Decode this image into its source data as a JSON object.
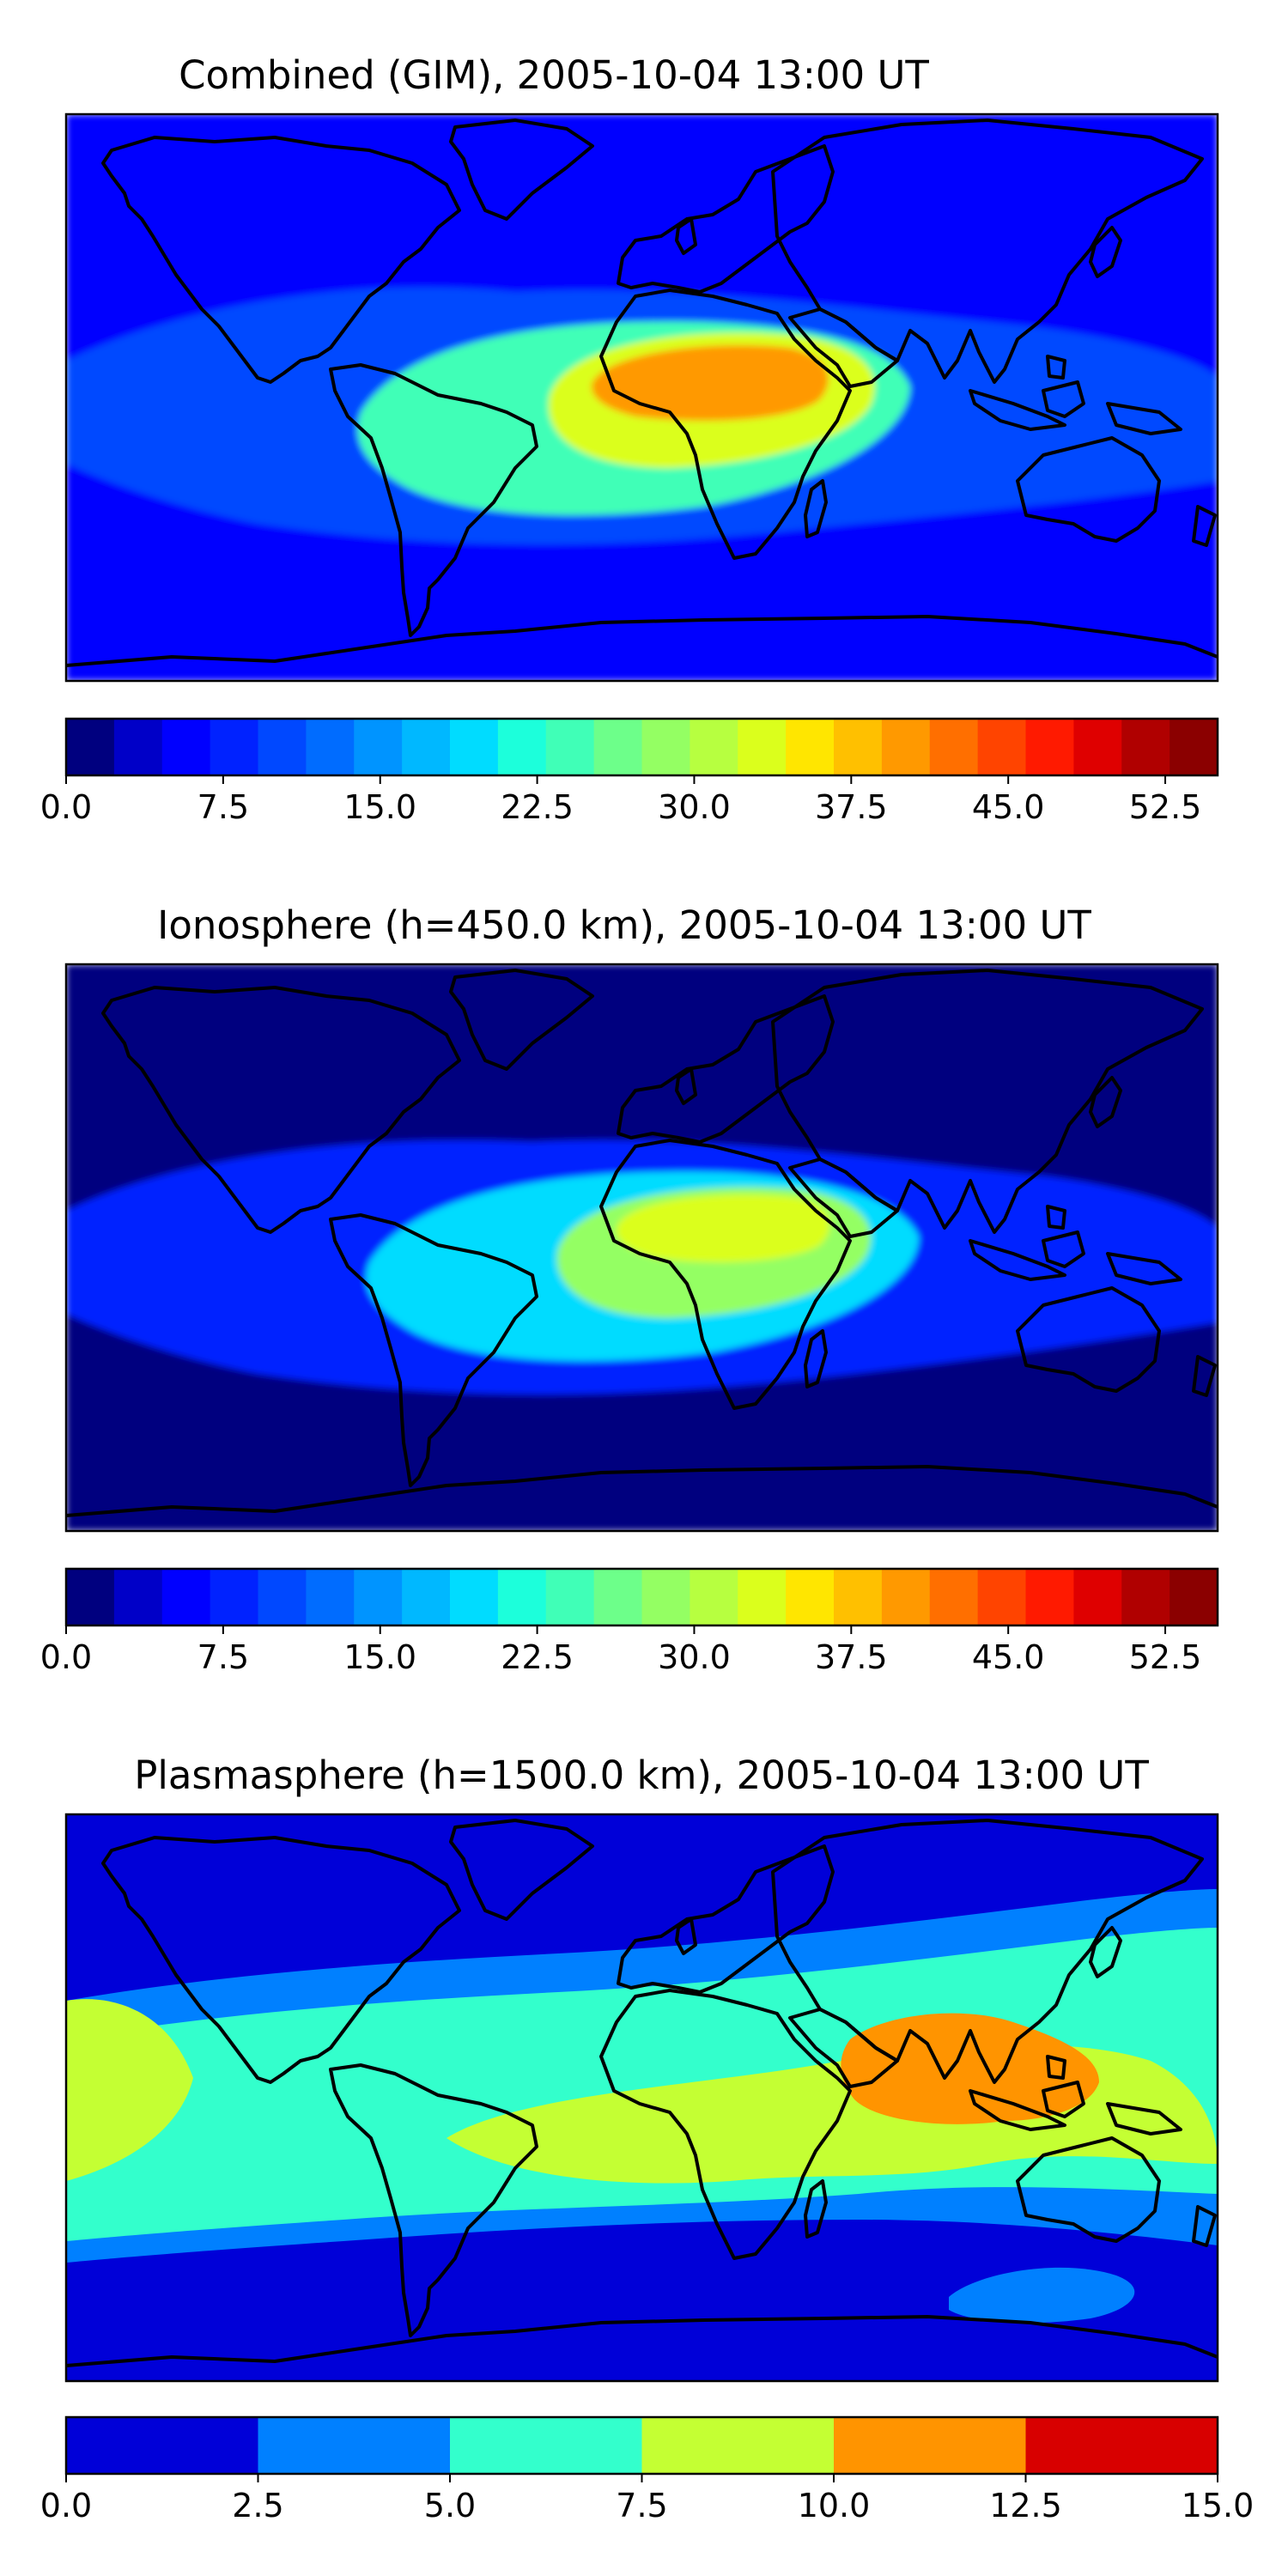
{
  "chart_data": [
    {
      "type": "heatmap",
      "title": "Combined (GIM), 2005-10-04 13:00 UT",
      "projection": "global-plate-carree",
      "colorbar": {
        "min": 0.0,
        "max": 55.0,
        "step": 2.5,
        "tick_values": [
          0.0,
          7.5,
          15.0,
          22.5,
          30.0,
          37.5,
          45.0,
          52.5
        ],
        "tick_labels": [
          "0.0",
          "7.5",
          "15.0",
          "22.5",
          "30.0",
          "37.5",
          "45.0",
          "52.5"
        ],
        "colors": [
          "#00007f",
          "#0000c8",
          "#0000ff",
          "#0022ff",
          "#0048ff",
          "#006cff",
          "#0094ff",
          "#00b8ff",
          "#00dcff",
          "#1cffdb",
          "#40ffb7",
          "#6dff8a",
          "#94ff63",
          "#b7ff40",
          "#dbff1c",
          "#ffe600",
          "#ffc000",
          "#ff9900",
          "#ff6f00",
          "#ff4400",
          "#ff1a00",
          "#df0000",
          "#b00000",
          "#8b0000"
        ]
      },
      "features": [
        {
          "name": "background",
          "level": 5.0
        },
        {
          "name": "equatorial-band",
          "level": 12.0
        },
        {
          "name": "atlantic-africa-max",
          "level": 27.0
        },
        {
          "name": "africa-core",
          "level": 36.0
        },
        {
          "name": "sahel-peak",
          "level": 43.0
        }
      ]
    },
    {
      "type": "heatmap",
      "title": "Ionosphere  (h=450.0 km), 2005-10-04 13:00 UT",
      "projection": "global-plate-carree",
      "colorbar": {
        "min": 0.0,
        "max": 55.0,
        "step": 2.5,
        "tick_values": [
          0.0,
          7.5,
          15.0,
          22.5,
          30.0,
          37.5,
          45.0,
          52.5
        ],
        "tick_labels": [
          "0.0",
          "7.5",
          "15.0",
          "22.5",
          "30.0",
          "37.5",
          "45.0",
          "52.5"
        ],
        "colors": [
          "#00007f",
          "#0000c8",
          "#0000ff",
          "#0022ff",
          "#0048ff",
          "#006cff",
          "#0094ff",
          "#00b8ff",
          "#00dcff",
          "#1cffdb",
          "#40ffb7",
          "#6dff8a",
          "#94ff63",
          "#b7ff40",
          "#dbff1c",
          "#ffe600",
          "#ffc000",
          "#ff9900",
          "#ff6f00",
          "#ff4400",
          "#ff1a00",
          "#df0000",
          "#b00000",
          "#8b0000"
        ]
      },
      "features": [
        {
          "name": "background",
          "level": 2.0
        },
        {
          "name": "equatorial-band",
          "level": 9.0
        },
        {
          "name": "atlantic-africa-max",
          "level": 20.0
        },
        {
          "name": "africa-core",
          "level": 31.0
        },
        {
          "name": "north-africa-peak",
          "level": 35.0
        }
      ]
    },
    {
      "type": "heatmap",
      "title": "Plasmasphere (h=1500.0 km), 2005-10-04 13:00 UT",
      "projection": "global-plate-carree",
      "colorbar": {
        "min": 0.0,
        "max": 15.0,
        "step": 2.5,
        "tick_values": [
          0.0,
          2.5,
          5.0,
          7.5,
          10.0,
          12.5,
          15.0
        ],
        "tick_labels": [
          "0.0",
          "2.5",
          "5.0",
          "7.5",
          "10.0",
          "12.5",
          "15.0"
        ],
        "colors": [
          "#0000d8",
          "#0080ff",
          "#33ffcc",
          "#c4ff33",
          "#ff9400",
          "#d80000"
        ]
      },
      "features": [
        {
          "name": "background",
          "level": 1.5
        },
        {
          "name": "mid-latitude-band",
          "level": 3.5
        },
        {
          "name": "low-latitude-band",
          "level": 6.0
        },
        {
          "name": "equatorial-max",
          "level": 8.5
        },
        {
          "name": "southeast-asia-peak",
          "level": 11.0
        }
      ]
    }
  ]
}
